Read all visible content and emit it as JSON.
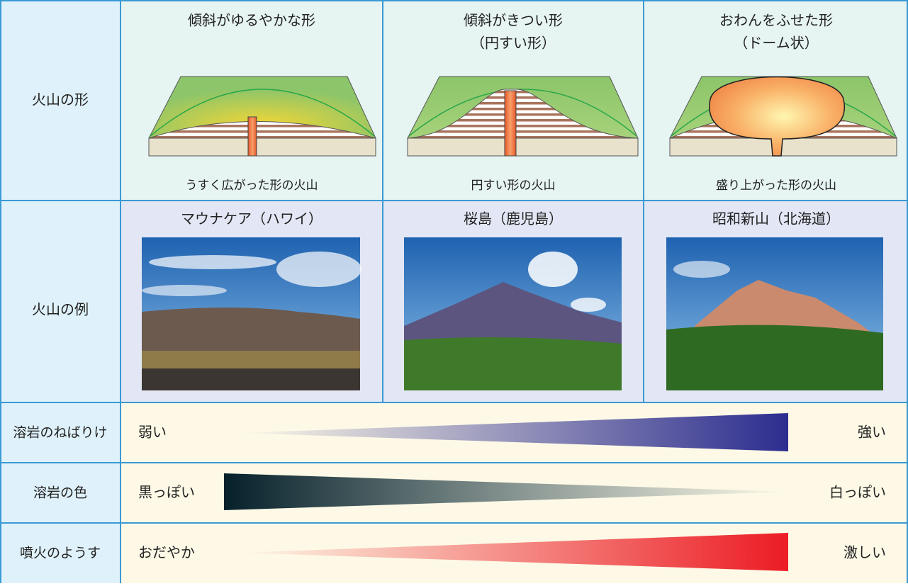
{
  "shape_row": {
    "label": "火山の形",
    "columns": [
      {
        "title": [
          "傾斜がゆるやかな形"
        ],
        "caption": "うすく広がった形の火山"
      },
      {
        "title": [
          "傾斜がきつい形",
          "（円すい形）"
        ],
        "caption": "円すい形の火山"
      },
      {
        "title": [
          "おわんをふせた形",
          "（ドーム状）"
        ],
        "caption": "盛り上がった形の火山"
      }
    ]
  },
  "example_row": {
    "label": "火山の例",
    "examples": [
      "マウナケア（ハワイ）",
      "桜島（鹿児島）",
      "昭和新山（北海道）"
    ]
  },
  "scale_rows": [
    {
      "label": "溶岩のねばりけ",
      "low": "弱い",
      "high": "強い"
    },
    {
      "label": "溶岩の色",
      "low": "黒っぽい",
      "high": "白っぽい"
    },
    {
      "label": "噴火のようす",
      "low": "おだやか",
      "high": "激しい"
    }
  ]
}
